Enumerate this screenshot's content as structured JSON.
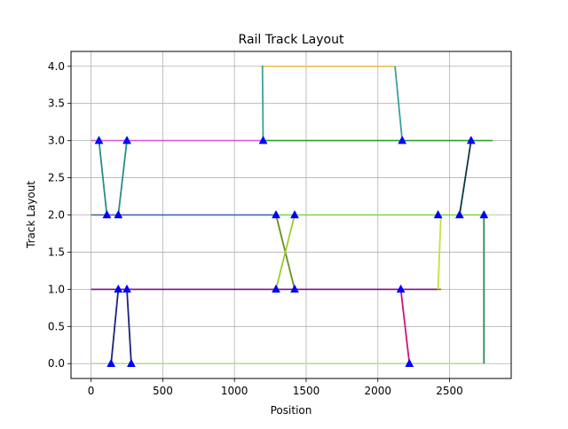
{
  "chart_data": {
    "type": "line",
    "title": "Rail Track Layout",
    "xlabel": "Position",
    "ylabel": "Track Layout",
    "xlim": [
      -140,
      2930
    ],
    "ylim": [
      -0.2,
      4.2
    ],
    "xticks": [
      0,
      500,
      1000,
      1500,
      2000,
      2500
    ],
    "xtick_labels": [
      "0",
      "500",
      "1000",
      "1500",
      "2000",
      "2500"
    ],
    "yticks": [
      0,
      0.5,
      1,
      1.5,
      2,
      2.5,
      3,
      3.5,
      4
    ],
    "ytick_labels": [
      "0.0",
      "0.5",
      "1.0",
      "1.5",
      "2.0",
      "2.5",
      "3.0",
      "3.5",
      "4.0"
    ],
    "grid": true,
    "tracks": [
      {
        "color": "#d65fd6",
        "x": [
          0,
          1200
        ],
        "y": [
          3,
          3
        ]
      },
      {
        "color": "#2ca02c",
        "x": [
          1200,
          2800
        ],
        "y": [
          3,
          3
        ]
      },
      {
        "color": "#e8c04a",
        "x": [
          1200,
          2120
        ],
        "y": [
          4,
          4
        ]
      },
      {
        "color": "#3b5bb5",
        "x": [
          0,
          1290
        ],
        "y": [
          2,
          2
        ]
      },
      {
        "color": "#7fd34e",
        "x": [
          1290,
          2760
        ],
        "y": [
          2,
          2
        ]
      },
      {
        "color": "#7b0f8a",
        "x": [
          0,
          2420
        ],
        "y": [
          1,
          1
        ]
      },
      {
        "color": "#b7e08f",
        "x": [
          0,
          2740
        ],
        "y": [
          0,
          0
        ]
      },
      {
        "color": "#8b4513",
        "x": [
          2400,
          2440
        ],
        "y": [
          1,
          1
        ]
      }
    ],
    "connectors": [
      {
        "color": "#2a8c8c",
        "x": [
          55,
          110
        ],
        "y": [
          3,
          2
        ]
      },
      {
        "color": "#2a8c8c",
        "x": [
          250,
          190
        ],
        "y": [
          3,
          2
        ]
      },
      {
        "color": "#3aa0a0",
        "x": [
          1200,
          1195,
          1200
        ],
        "y": [
          3,
          4,
          4
        ]
      },
      {
        "color": "#3aa0a0",
        "x": [
          2120,
          2170
        ],
        "y": [
          4,
          3
        ]
      },
      {
        "color": "#6b8e23",
        "x": [
          1290,
          1420
        ],
        "y": [
          2,
          1
        ]
      },
      {
        "color": "#9acd32",
        "x": [
          1420,
          1290
        ],
        "y": [
          2,
          1
        ]
      },
      {
        "color": "#0b3b3b",
        "x": [
          2570,
          2650
        ],
        "y": [
          2,
          3
        ]
      },
      {
        "color": "#c8e03c",
        "x": [
          2420,
          2440
        ],
        "y": [
          1,
          2
        ]
      },
      {
        "color": "#1a237e",
        "x": [
          140,
          190
        ],
        "y": [
          0,
          1
        ]
      },
      {
        "color": "#1a237e",
        "x": [
          250,
          280
        ],
        "y": [
          1,
          0
        ]
      },
      {
        "color": "#c71585",
        "x": [
          2160,
          2220
        ],
        "y": [
          1,
          0
        ]
      },
      {
        "color": "#2e8b57",
        "x": [
          2740,
          2740
        ],
        "y": [
          0,
          2
        ]
      },
      {
        "color": "#cc3333",
        "x": [
          2730,
          2740
        ],
        "y": [
          2,
          2
        ]
      }
    ],
    "markers": [
      [
        55,
        3
      ],
      [
        250,
        3
      ],
      [
        1200,
        3
      ],
      [
        2170,
        3
      ],
      [
        2650,
        3
      ],
      [
        110,
        2
      ],
      [
        190,
        2
      ],
      [
        1290,
        2
      ],
      [
        1420,
        2
      ],
      [
        2420,
        2
      ],
      [
        2570,
        2
      ],
      [
        2740,
        2
      ],
      [
        190,
        1
      ],
      [
        250,
        1
      ],
      [
        1290,
        1
      ],
      [
        1420,
        1
      ],
      [
        2160,
        1
      ],
      [
        140,
        0
      ],
      [
        280,
        0
      ],
      [
        2220,
        0
      ]
    ],
    "marker_color": "#0000ff"
  }
}
